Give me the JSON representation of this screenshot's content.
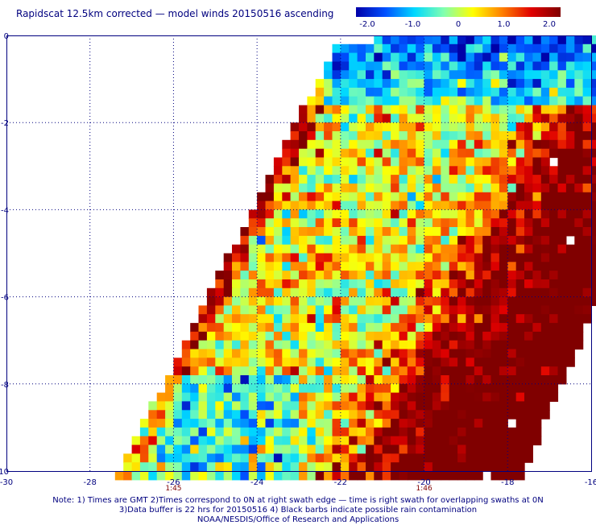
{
  "title": "Rapidscat 12.5km corrected — model winds 20150516 ascending",
  "colorbar": {
    "ticks": [
      "-2.0",
      "-1.0",
      "0",
      "1.0",
      "2.0"
    ],
    "stops": [
      "#0000a8",
      "#0050ff",
      "#00d8ff",
      "#80ffb0",
      "#ffff00",
      "#ff8000",
      "#e00000",
      "#800000"
    ]
  },
  "map": {
    "x_ticks": [
      "-30",
      "-28",
      "-26",
      "-24",
      "-22",
      "-20",
      "-18",
      "-16"
    ],
    "y_ticks": [
      "0",
      "-2",
      "-4",
      "-6",
      "-8",
      "-10"
    ],
    "time_labels": [
      {
        "text": "1:45",
        "lon": -26
      },
      {
        "text": "1:46",
        "lon": -20
      }
    ],
    "lon_range": [
      -30,
      -16
    ],
    "lat_range": [
      -10,
      0
    ],
    "grid": true,
    "colors": {
      "frame": "#00007f",
      "time_label": "#7f0000",
      "missing": "#ffffff"
    }
  },
  "notes": [
    "Note: 1) Times are GMT 2)Times correspond to 0N at right swath edge — time is right swath for overlapping swaths at 0N",
    "3)Data buffer is 22 hrs for 20150516 4) Black barbs indicate possible rain contamination",
    "NOAA/NESDIS/Office of Research and Applications"
  ]
}
